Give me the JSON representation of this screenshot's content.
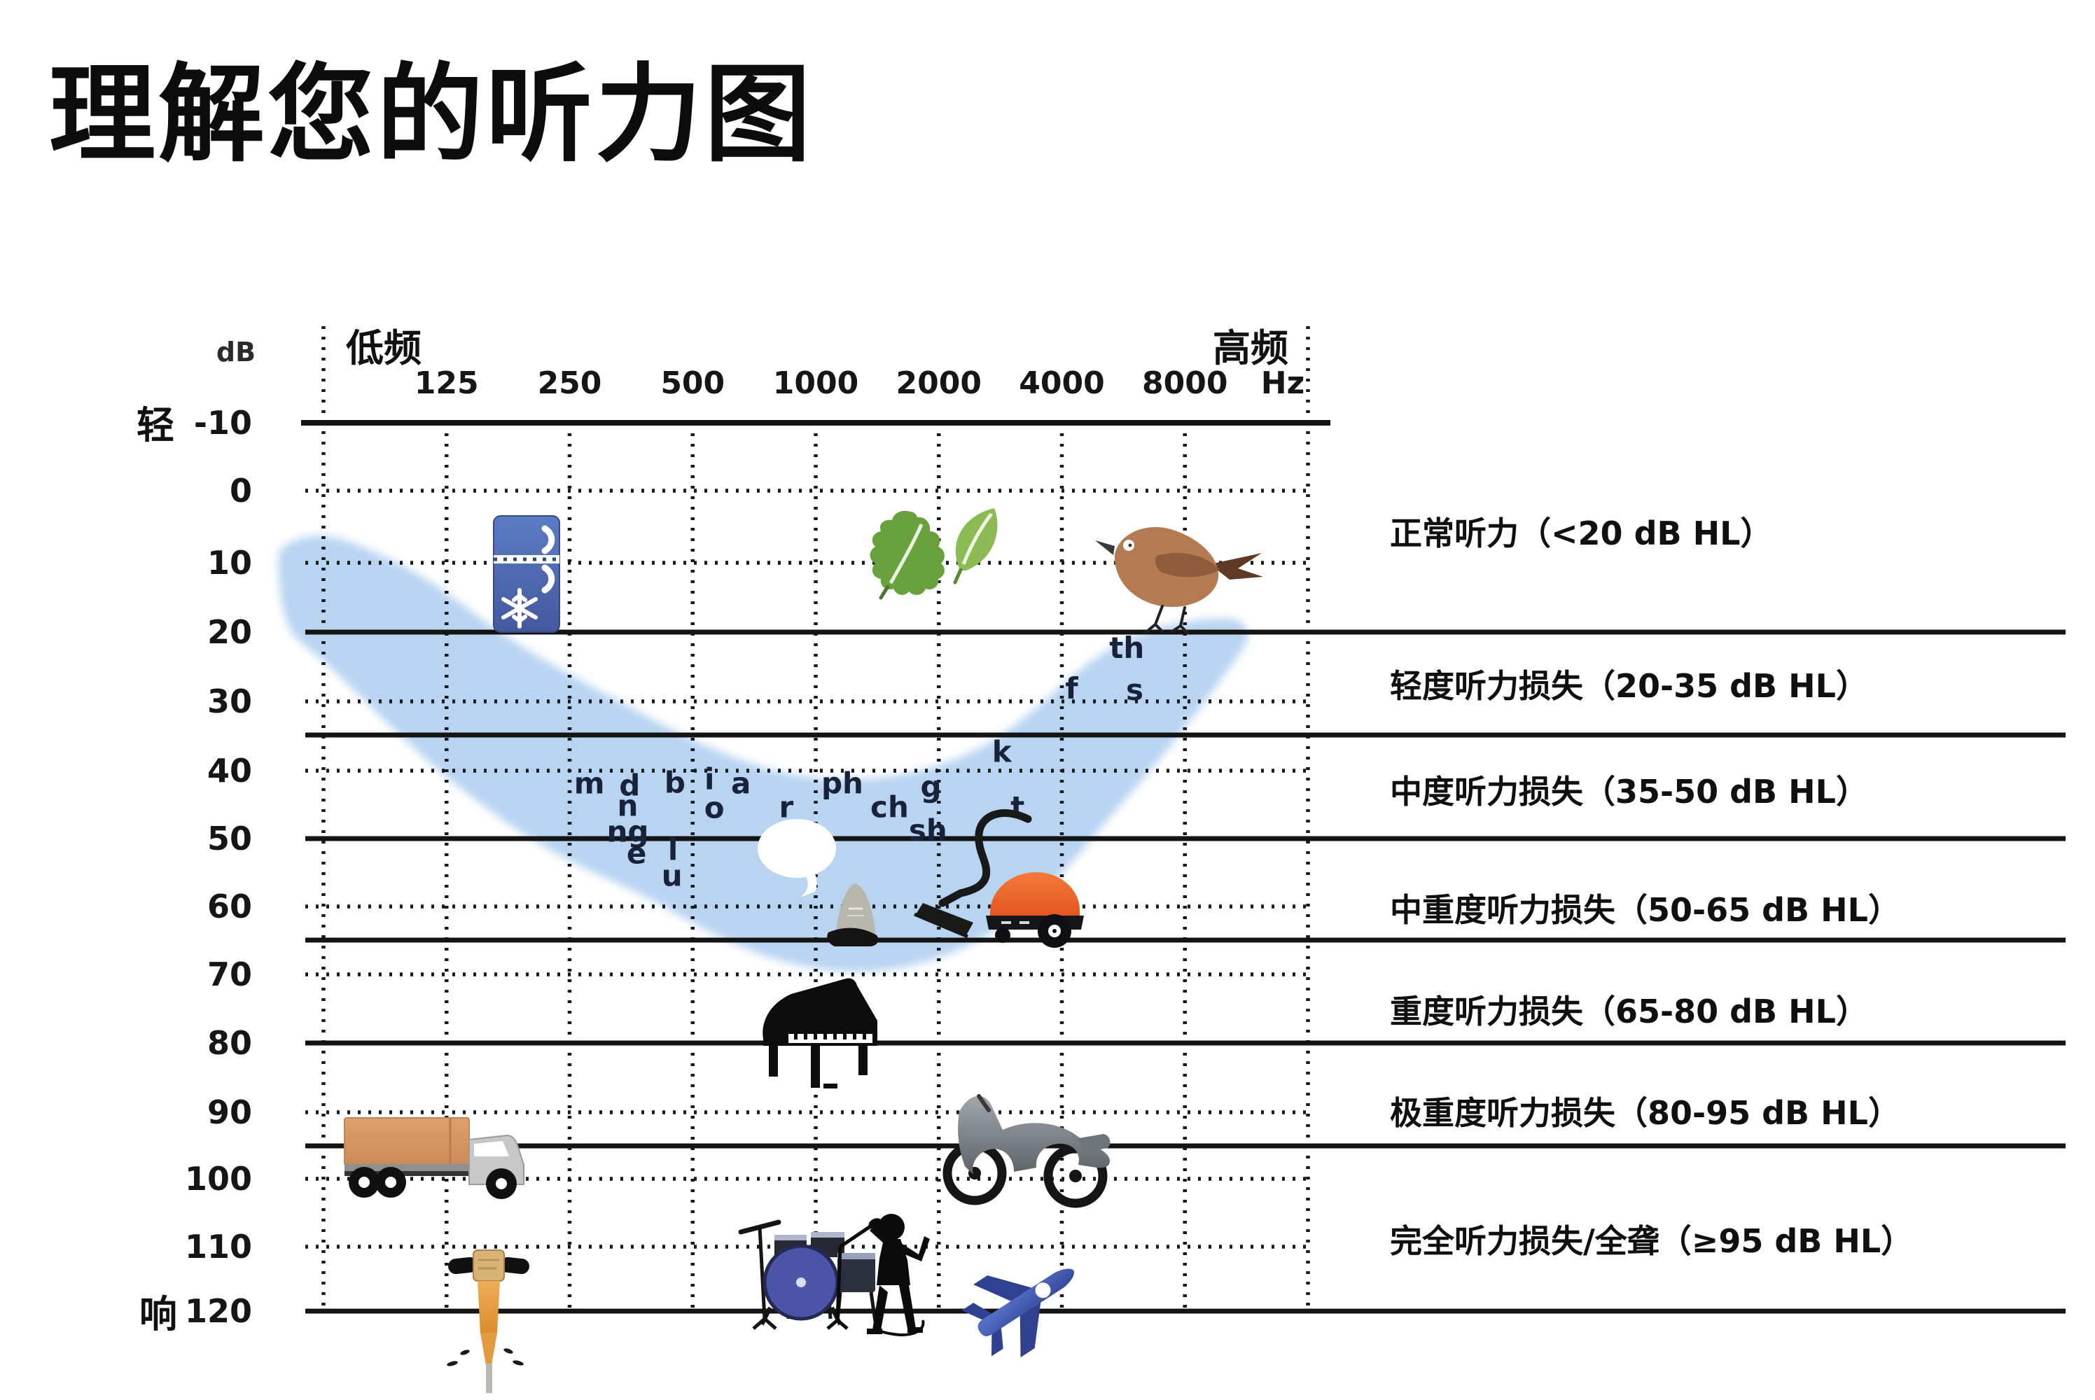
{
  "title": "理解您的听力图",
  "chart_data": {
    "type": "area",
    "title": "理解您的听力图",
    "x_axis": {
      "low_label": "低频",
      "high_label": "高频",
      "unit": "Hz",
      "ticks": [
        "125",
        "250",
        "500",
        "1000",
        "2000",
        "4000",
        "8000"
      ]
    },
    "y_axis": {
      "unit": "dB",
      "soft_label": "轻",
      "loud_label": "响",
      "ticks": [
        -10,
        0,
        10,
        20,
        30,
        40,
        50,
        60,
        70,
        80,
        90,
        100,
        110,
        120
      ],
      "range": [
        -10,
        120
      ]
    },
    "grid": {
      "db_lines_solid_chart": [
        -10
      ],
      "db_lines_solid_full": [
        20,
        35,
        50,
        65,
        80,
        95,
        120
      ],
      "db_lines_dotted": [
        0,
        10,
        30,
        40,
        60,
        70,
        90,
        100,
        110
      ],
      "freq_gridline_count": 9
    },
    "categories": [
      {
        "label": "正常听力（<20 dB HL）",
        "db_from": -10,
        "db_to": 20,
        "label_db": 5.9
      },
      {
        "label": "轻度听力损失（20-35 dB HL）",
        "db_from": 20,
        "db_to": 35,
        "label_db": 27.8
      },
      {
        "label": "中度听力损失（35-50 dB HL）",
        "db_from": 35,
        "db_to": 50,
        "label_db": 43.1
      },
      {
        "label": "中重度听力损失（50-65 dB HL）",
        "db_from": 50,
        "db_to": 65,
        "label_db": 60.5
      },
      {
        "label": "重度听力损失（65-80 dB HL）",
        "db_from": 65,
        "db_to": 80,
        "label_db": 75.4
      },
      {
        "label": "极重度听力损失（80-95 dB HL）",
        "db_from": 80,
        "db_to": 95,
        "label_db": 90.1
      },
      {
        "label": "完全听力损失/全聋（≥95 dB HL）",
        "db_from": 95,
        "db_to": 120,
        "label_db": 109.2
      }
    ],
    "speech_sounds": [
      {
        "t": "m",
        "f": 0.27,
        "db": 41.8
      },
      {
        "t": "d",
        "f": 0.311,
        "db": 42.1
      },
      {
        "t": "b",
        "f": 0.357,
        "db": 41.7
      },
      {
        "t": "i",
        "f": 0.392,
        "db": 41.2
      },
      {
        "t": "a",
        "f": 0.424,
        "db": 41.8
      },
      {
        "t": "n",
        "f": 0.309,
        "db": 45.1
      },
      {
        "t": "o",
        "f": 0.397,
        "db": 45.4
      },
      {
        "t": "r",
        "f": 0.47,
        "db": 45.3
      },
      {
        "t": "ng",
        "f": 0.309,
        "db": 48.9
      },
      {
        "t": "e",
        "f": 0.318,
        "db": 52.1
      },
      {
        "t": "l",
        "f": 0.355,
        "db": 51.6
      },
      {
        "t": "u",
        "f": 0.354,
        "db": 55.4
      },
      {
        "t": "ph",
        "f": 0.527,
        "db": 41.8
      },
      {
        "t": "ch",
        "f": 0.575,
        "db": 45.3
      },
      {
        "t": "g",
        "f": 0.617,
        "db": 42.3
      },
      {
        "t": "sh",
        "f": 0.614,
        "db": 48.7
      },
      {
        "t": "k",
        "f": 0.689,
        "db": 37.3
      },
      {
        "t": "t",
        "f": 0.705,
        "db": 45.3
      },
      {
        "t": "f",
        "f": 0.76,
        "db": 28.1
      },
      {
        "t": "s",
        "f": 0.824,
        "db": 28.3
      },
      {
        "t": "th",
        "f": 0.816,
        "db": 22.2
      }
    ],
    "sound_icons": [
      "refrigerator-icon",
      "leaves-icon",
      "bird-icon",
      "speech-bubble",
      "small-appliance-icon",
      "vacuum-cleaner-icon",
      "grand-piano-icon",
      "truck-icon",
      "motorcycle-icon",
      "jackhammer-icon",
      "drum-kit-icon",
      "singer-icon",
      "airplane-icon"
    ],
    "colors": {
      "speech_banana": "#b5d2f1",
      "grid": "#1a1a1a",
      "phoneme_text": "#18223a",
      "fridge_blue": "#4a63ad",
      "leaf_green": "#69a23c",
      "bird_brown": "#b47a52",
      "vacuum_orange": "#f4692f",
      "truck_tan": "#d99a66",
      "drum_blue": "#4a55a8",
      "plane_blue": "#4a63b8",
      "jackhammer_orange": "#e8a040"
    }
  }
}
